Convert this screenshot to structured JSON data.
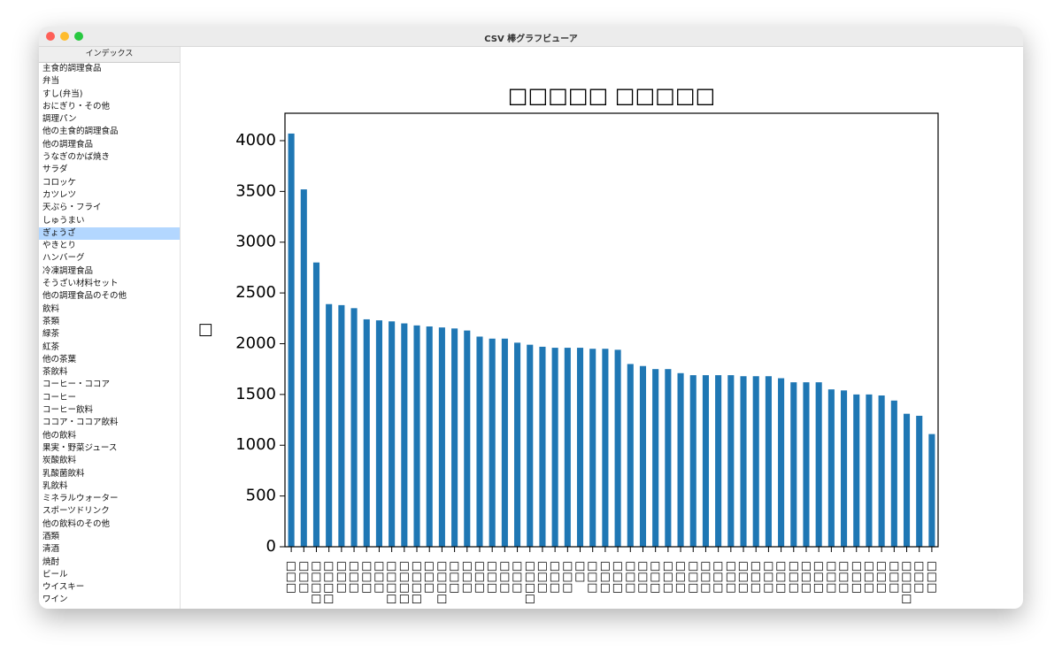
{
  "window": {
    "title": "CSV 棒グラフビューア"
  },
  "sidebar": {
    "header": "インデックス",
    "selected": 13,
    "items": [
      "主食的調理食品",
      "弁当",
      "すし(弁当)",
      "おにぎり・その他",
      "調理パン",
      "他の主食的調理食品",
      "他の調理食品",
      "うなぎのかば焼き",
      "サラダ",
      "コロッケ",
      "カツレツ",
      "天ぷら・フライ",
      "しゅうまい",
      "ぎょうざ",
      "やきとり",
      "ハンバーグ",
      "冷凍調理食品",
      "そうざい材料セット",
      "他の調理食品のその他",
      "飲料",
      "茶類",
      "緑茶",
      "紅茶",
      "他の茶葉",
      "茶飲料",
      "コーヒー・ココア",
      "コーヒー",
      "コーヒー飲料",
      "ココア・ココア飲料",
      "他の飲料",
      "果実・野菜ジュース",
      "炭酸飲料",
      "乳酸菌飲料",
      "乳飲料",
      "ミネラルウォーター",
      "スポーツドリンク",
      "他の飲料のその他",
      "酒類",
      "清酒",
      "焼酎",
      "ビール",
      "ウイスキー",
      "ワイン"
    ]
  },
  "chart_data": {
    "type": "bar",
    "title": "□□□□□ □□□□□",
    "ylabel": "□",
    "color": "#1f77b4",
    "categories": [
      "□□□",
      "□□□",
      "□□□□",
      "□□□□",
      "□□□",
      "□□□",
      "□□□",
      "□□□",
      "□□□□",
      "□□□□",
      "□□□□",
      "□□□",
      "□□□□",
      "□□□",
      "□□□",
      "□□□",
      "□□□",
      "□□□",
      "□□□",
      "□□□□",
      "□□□",
      "□□□",
      "□□□",
      "□□",
      "□□□",
      "□□□",
      "□□□",
      "□□□",
      "□□□",
      "□□□",
      "□□□",
      "□□□",
      "□□□",
      "□□□",
      "□□□",
      "□□□",
      "□□□",
      "□□□",
      "□□□",
      "□□□",
      "□□□",
      "□□□",
      "□□□",
      "□□□",
      "□□□",
      "□□□",
      "□□□",
      "□□□",
      "□□□",
      "□□□□",
      "□□□",
      "□□□"
    ],
    "values": [
      4070,
      3520,
      2800,
      2390,
      2380,
      2350,
      2240,
      2230,
      2220,
      2200,
      2180,
      2170,
      2160,
      2150,
      2130,
      2070,
      2050,
      2050,
      2010,
      1990,
      1970,
      1960,
      1960,
      1960,
      1950,
      1950,
      1940,
      1800,
      1780,
      1750,
      1750,
      1710,
      1690,
      1690,
      1690,
      1690,
      1680,
      1680,
      1680,
      1660,
      1620,
      1620,
      1620,
      1550,
      1540,
      1500,
      1500,
      1490,
      1440,
      1310,
      1290,
      1110
    ],
    "ylim": [
      0,
      4270
    ],
    "yticks": [
      0,
      500,
      1000,
      1500,
      2000,
      2500,
      3000,
      3500,
      4000
    ]
  }
}
